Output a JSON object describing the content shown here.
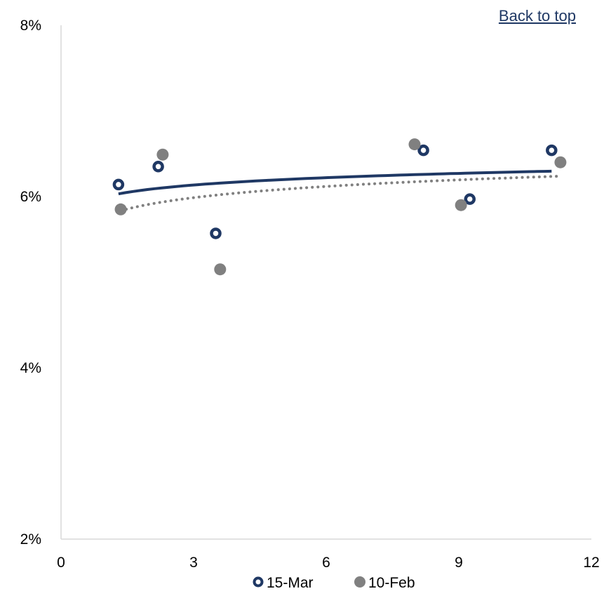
{
  "back_to_top": "Back to top",
  "chart_data": {
    "type": "scatter",
    "xlim": [
      0,
      12
    ],
    "ylim": [
      0.02,
      0.08
    ],
    "x_ticks": [
      0,
      3,
      6,
      9,
      12
    ],
    "x_tick_labels": [
      "0",
      "3",
      "6",
      "9",
      "12"
    ],
    "y_ticks": [
      0.02,
      0.04,
      0.06,
      0.08
    ],
    "y_tick_labels": [
      "2%",
      "4%",
      "6%",
      "8%"
    ],
    "grid": false,
    "legend_placement": "bottom-center",
    "series": [
      {
        "name": "15-Mar",
        "color": "#1f3864",
        "marker": "ring",
        "trendline": "logarithmic-solid",
        "points": [
          [
            1.3,
            0.0614
          ],
          [
            2.2,
            0.0635
          ],
          [
            3.5,
            0.0557
          ],
          [
            8.2,
            0.0654
          ],
          [
            9.25,
            0.0597
          ],
          [
            11.1,
            0.0654
          ]
        ]
      },
      {
        "name": "10-Feb",
        "color": "#808080",
        "marker": "dot",
        "trendline": "logarithmic-dotted",
        "points": [
          [
            1.35,
            0.0585
          ],
          [
            2.3,
            0.0649
          ],
          [
            3.6,
            0.0515
          ],
          [
            8.0,
            0.0661
          ],
          [
            9.05,
            0.059
          ],
          [
            11.3,
            0.064
          ]
        ]
      }
    ]
  }
}
